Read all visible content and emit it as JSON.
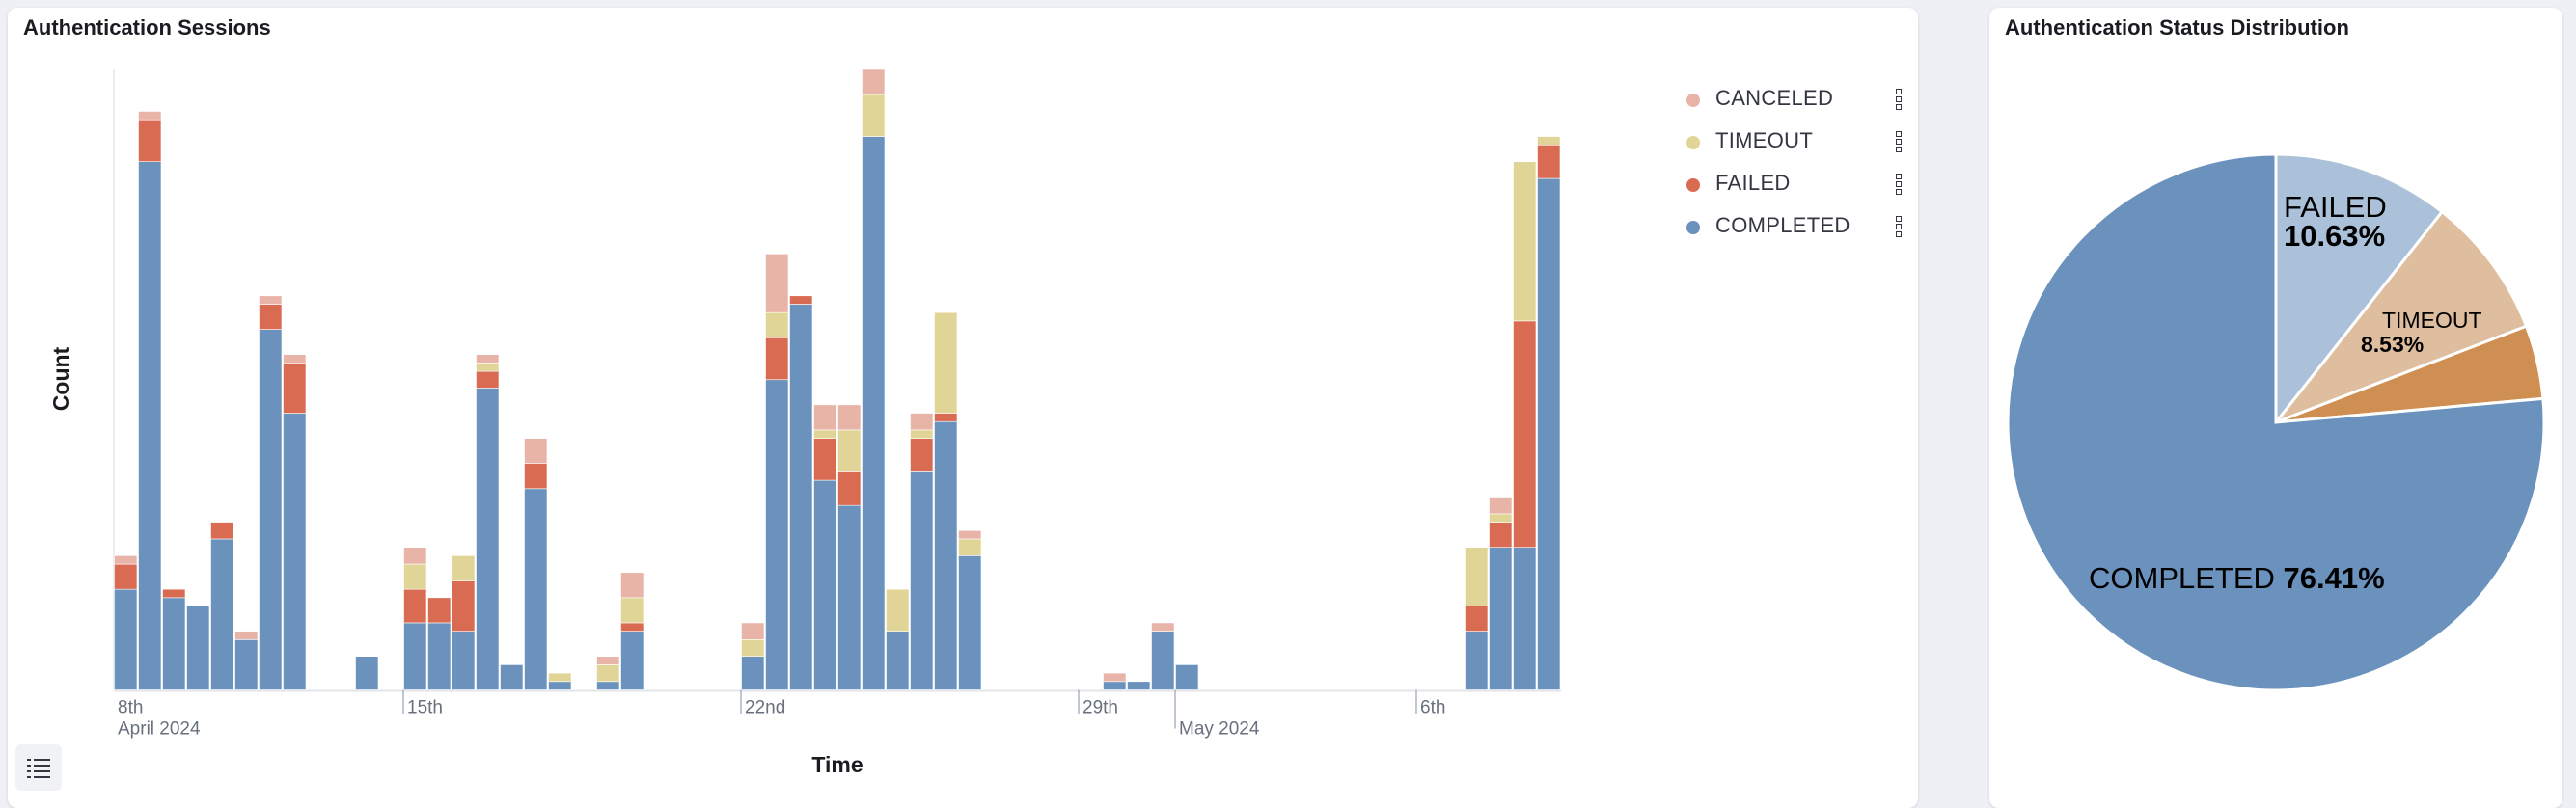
{
  "left_panel": {
    "title": "Authentication Sessions"
  },
  "right_panel": {
    "title": "Authentication Status Distribution"
  },
  "chart_data": [
    {
      "type": "bar",
      "stacked": true,
      "title": "Authentication Sessions",
      "xlabel": "Time",
      "ylabel": "Count",
      "y_axis_tick_labels_shown": false,
      "ylim": [
        0,
        74
      ],
      "x_domain": [
        "2024-04-09T00:00",
        "2024-05-09T00:00"
      ],
      "bucket_hours": 12,
      "x_ticks": [
        {
          "date": "2024-04-08T00:00",
          "label": "8th",
          "sublabel": "April 2024"
        },
        {
          "date": "2024-04-15T00:00",
          "label": "15th",
          "sublabel": ""
        },
        {
          "date": "2024-04-22T00:00",
          "label": "22nd",
          "sublabel": ""
        },
        {
          "date": "2024-04-29T00:00",
          "label": "29th",
          "sublabel": ""
        },
        {
          "date": "2024-05-01T00:00",
          "label": "",
          "sublabel": "May 2024"
        },
        {
          "date": "2024-05-06T00:00",
          "label": "6th",
          "sublabel": ""
        }
      ],
      "series": [
        {
          "name": "COMPLETED",
          "color": "#6a92bd"
        },
        {
          "name": "FAILED",
          "color": "#d96b52"
        },
        {
          "name": "TIMEOUT",
          "color": "#e0d596"
        },
        {
          "name": "CANCELED",
          "color": "#e9b4a8"
        }
      ],
      "legend_order": [
        "CANCELED",
        "TIMEOUT",
        "FAILED",
        "COMPLETED"
      ],
      "legend_position": "top-right",
      "columns": [
        "time",
        "COMPLETED",
        "FAILED",
        "TIMEOUT",
        "CANCELED"
      ],
      "rows": [
        [
          "2024-04-09T00:00",
          12,
          3,
          0,
          1
        ],
        [
          "2024-04-09T12:00",
          63,
          5,
          0,
          1
        ],
        [
          "2024-04-10T00:00",
          11,
          1,
          0,
          0
        ],
        [
          "2024-04-10T12:00",
          10,
          0,
          0,
          0
        ],
        [
          "2024-04-11T00:00",
          18,
          2,
          0,
          0
        ],
        [
          "2024-04-11T12:00",
          6,
          0,
          0,
          1
        ],
        [
          "2024-04-12T00:00",
          43,
          3,
          0,
          1
        ],
        [
          "2024-04-12T12:00",
          33,
          6,
          0,
          1
        ],
        [
          "2024-04-14T00:00",
          4,
          0,
          0,
          0
        ],
        [
          "2024-04-15T00:00",
          8,
          4,
          3,
          2
        ],
        [
          "2024-04-15T12:00",
          8,
          3,
          0,
          0
        ],
        [
          "2024-04-16T00:00",
          7,
          6,
          3,
          0
        ],
        [
          "2024-04-16T12:00",
          36,
          2,
          1,
          1
        ],
        [
          "2024-04-17T00:00",
          3,
          0,
          0,
          0
        ],
        [
          "2024-04-17T12:00",
          24,
          3,
          0,
          3
        ],
        [
          "2024-04-18T00:00",
          1,
          0,
          1,
          0
        ],
        [
          "2024-04-19T00:00",
          1,
          0,
          2,
          1
        ],
        [
          "2024-04-19T12:00",
          7,
          1,
          3,
          3
        ],
        [
          "2024-04-22T00:00",
          4,
          0,
          2,
          2
        ],
        [
          "2024-04-22T12:00",
          37,
          5,
          3,
          7
        ],
        [
          "2024-04-23T00:00",
          46,
          1,
          0,
          0
        ],
        [
          "2024-04-23T12:00",
          25,
          5,
          1,
          3
        ],
        [
          "2024-04-24T00:00",
          22,
          4,
          5,
          3
        ],
        [
          "2024-04-24T12:00",
          66,
          0,
          5,
          3
        ],
        [
          "2024-04-25T00:00",
          7,
          0,
          5,
          0
        ],
        [
          "2024-04-25T12:00",
          26,
          4,
          1,
          2
        ],
        [
          "2024-04-26T00:00",
          32,
          1,
          12,
          0
        ],
        [
          "2024-04-26T12:00",
          16,
          0,
          2,
          1
        ],
        [
          "2024-04-29T12:00",
          1,
          0,
          0,
          1
        ],
        [
          "2024-04-30T00:00",
          1,
          0,
          0,
          0
        ],
        [
          "2024-04-30T12:00",
          7,
          0,
          0,
          1
        ],
        [
          "2024-05-01T00:00",
          3,
          0,
          0,
          0
        ],
        [
          "2024-05-07T00:00",
          7,
          3,
          7,
          0
        ],
        [
          "2024-05-07T12:00",
          17,
          3,
          1,
          2
        ],
        [
          "2024-05-08T00:00",
          17,
          27,
          19,
          0
        ],
        [
          "2024-05-08T12:00",
          61,
          4,
          1,
          0
        ]
      ]
    },
    {
      "type": "pie",
      "title": "Authentication Status Distribution",
      "start_angle": "12 o'clock, clockwise",
      "slices": [
        {
          "label": "FAILED",
          "value": 10.63,
          "percent_label": "10.63%",
          "color": "#abc1d9"
        },
        {
          "label": "TIMEOUT",
          "value": 8.53,
          "percent_label": "8.53%",
          "color": "#dfbea0"
        },
        {
          "label": "",
          "value": 4.43,
          "percent_label": "",
          "color": "#d08f52"
        },
        {
          "label": "COMPLETED",
          "value": 76.41,
          "percent_label": "76.41%",
          "color": "#6a92bd"
        }
      ]
    }
  ],
  "toolbar": {
    "legend_toggle_icon": "list-icon"
  },
  "legend": {
    "drag_handle_icon": "drag-handle-icon"
  }
}
